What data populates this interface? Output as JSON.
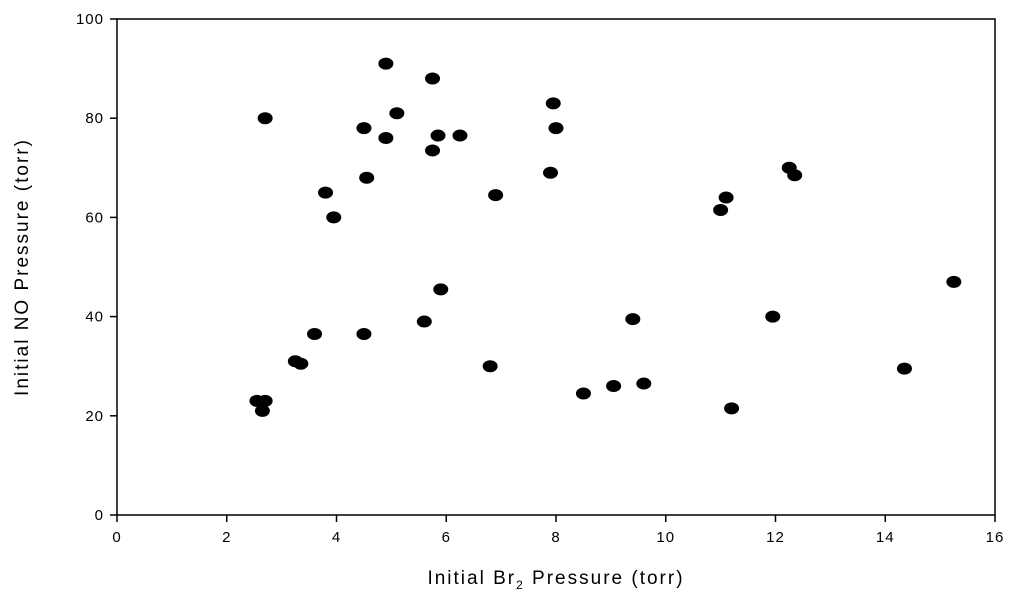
{
  "chart_data": {
    "type": "scatter",
    "title": "",
    "xlabel": {
      "main": "Initial Br",
      "subscript": "2",
      "suffix": " Pressure (torr)"
    },
    "ylabel": "Initial NO Pressure (torr)",
    "xlim": [
      0,
      16
    ],
    "ylim": [
      0,
      100
    ],
    "xticks": [
      "0",
      "2",
      "4",
      "6",
      "8",
      "10",
      "12",
      "14",
      "16"
    ],
    "yticks": [
      "0",
      "20",
      "40",
      "60",
      "80",
      "100"
    ],
    "grid": false,
    "legend": "none",
    "marker_color": "#000000",
    "points": [
      {
        "x": 2.55,
        "y": 23
      },
      {
        "x": 2.7,
        "y": 23
      },
      {
        "x": 2.65,
        "y": 21
      },
      {
        "x": 2.7,
        "y": 80
      },
      {
        "x": 3.25,
        "y": 31
      },
      {
        "x": 3.35,
        "y": 30.5
      },
      {
        "x": 3.6,
        "y": 36.5
      },
      {
        "x": 3.8,
        "y": 65
      },
      {
        "x": 3.95,
        "y": 60
      },
      {
        "x": 4.5,
        "y": 78
      },
      {
        "x": 4.55,
        "y": 68
      },
      {
        "x": 4.5,
        "y": 36.5
      },
      {
        "x": 4.9,
        "y": 91
      },
      {
        "x": 4.9,
        "y": 76
      },
      {
        "x": 5.1,
        "y": 81
      },
      {
        "x": 5.6,
        "y": 39
      },
      {
        "x": 5.75,
        "y": 88
      },
      {
        "x": 5.75,
        "y": 73.5
      },
      {
        "x": 5.85,
        "y": 76.5
      },
      {
        "x": 5.9,
        "y": 45.5
      },
      {
        "x": 6.25,
        "y": 76.5
      },
      {
        "x": 6.8,
        "y": 30
      },
      {
        "x": 6.9,
        "y": 64.5
      },
      {
        "x": 7.9,
        "y": 69
      },
      {
        "x": 7.95,
        "y": 83
      },
      {
        "x": 8.0,
        "y": 78
      },
      {
        "x": 8.5,
        "y": 24.5
      },
      {
        "x": 9.05,
        "y": 26
      },
      {
        "x": 9.4,
        "y": 39.5
      },
      {
        "x": 9.6,
        "y": 26.5
      },
      {
        "x": 11.0,
        "y": 61.5
      },
      {
        "x": 11.1,
        "y": 64
      },
      {
        "x": 11.2,
        "y": 21.5
      },
      {
        "x": 11.95,
        "y": 40
      },
      {
        "x": 12.25,
        "y": 70
      },
      {
        "x": 12.35,
        "y": 68.5
      },
      {
        "x": 14.35,
        "y": 29.5
      },
      {
        "x": 15.25,
        "y": 47
      }
    ]
  }
}
